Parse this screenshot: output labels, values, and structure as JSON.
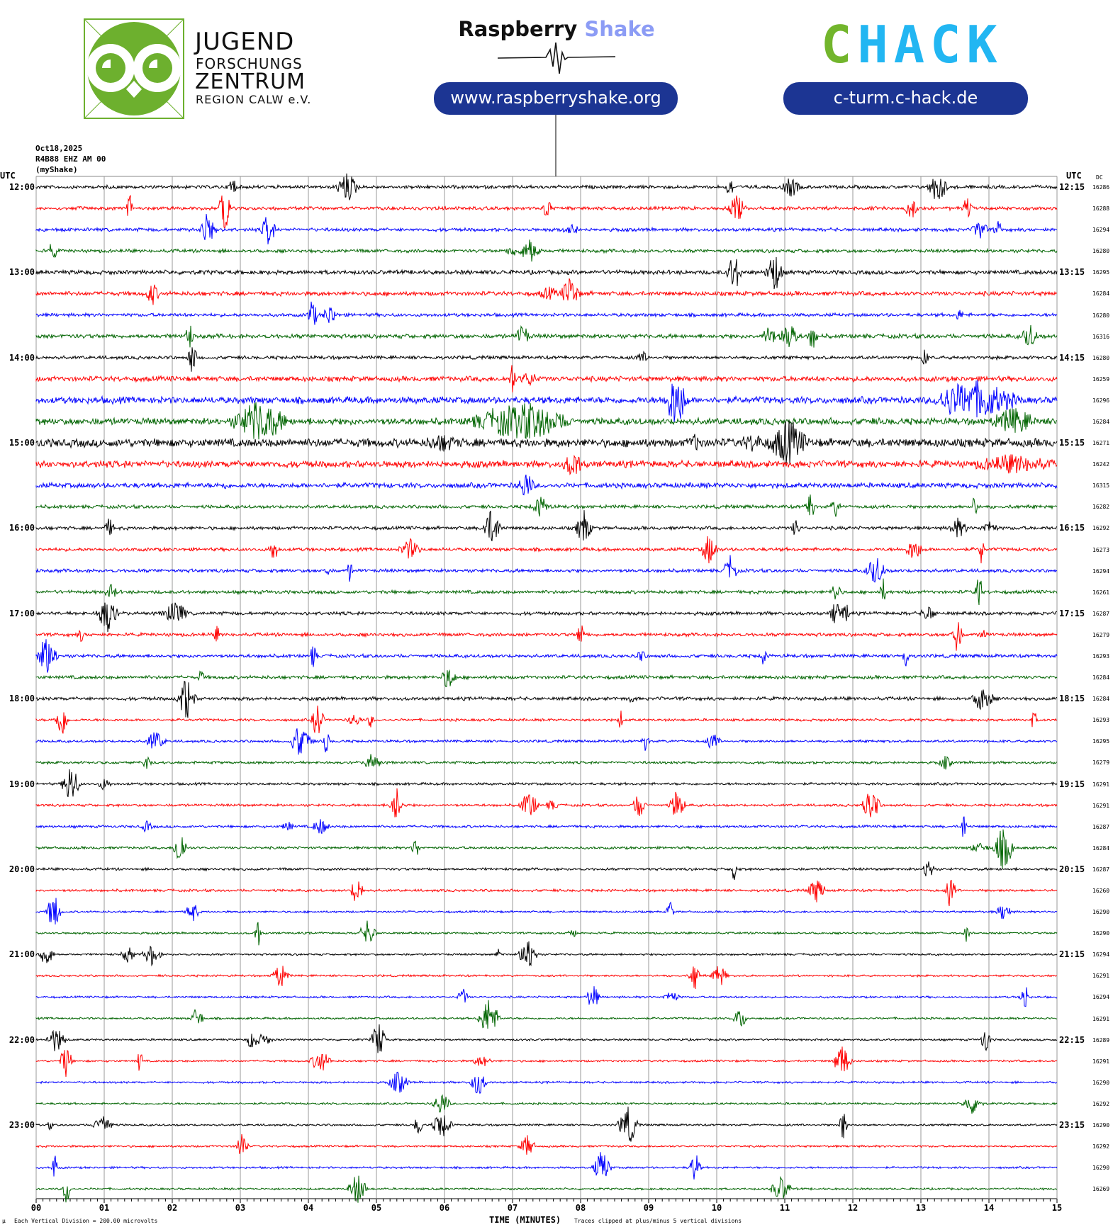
{
  "header": {
    "date": "Oct18,2025",
    "station": "R4B88 EHZ AM 00",
    "network": "(myShake)"
  },
  "logos": {
    "jfz_lines": [
      "JUGEND",
      "FORSCHUNGS",
      "ZENTRUM",
      "REGION CALW e.V."
    ],
    "rs_name_black": "Raspberry",
    "rs_name_blue": "Shake",
    "rs_url": "www.raspberryshake.org",
    "chack_logo": "CHACK",
    "chack_url": "c-turm.c-hack.de",
    "colors": {
      "jfz_green": "#6db02e",
      "rs_blue": "#8c9cf5",
      "pill_blue": "#1c3593",
      "chack_green": "#72b52c",
      "chack_cyan": "#22b6f2"
    }
  },
  "chart_data": {
    "type": "line",
    "title": "",
    "xlabel": "TIME (MINUTES)",
    "xlim": [
      0,
      15
    ],
    "x_ticks": [
      "00",
      "01",
      "02",
      "03",
      "04",
      "05",
      "06",
      "07",
      "08",
      "09",
      "10",
      "11",
      "12",
      "13",
      "14",
      "15"
    ],
    "left_axis_title": "UTC",
    "right_axis_title": "UTC",
    "dc_title": "DC",
    "left_hour_labels": [
      "12:00",
      "13:00",
      "14:00",
      "15:00",
      "16:00",
      "17:00",
      "18:00",
      "19:00",
      "20:00",
      "21:00",
      "22:00",
      "23:00"
    ],
    "right_hour_labels": [
      "12:15",
      "13:15",
      "14:15",
      "15:15",
      "16:15",
      "17:15",
      "18:15",
      "19:15",
      "20:15",
      "21:15",
      "22:15",
      "23:15"
    ],
    "rows_per_hour": 4,
    "row_minutes": 15,
    "trace_colors": [
      "#000000",
      "#ff0000",
      "#0000ff",
      "#006400"
    ],
    "dc_values": [
      16286,
      16288,
      16294,
      16280,
      16295,
      16284,
      16280,
      16316,
      16280,
      16259,
      16296,
      16284,
      16271,
      16242,
      16315,
      16282,
      16292,
      16273,
      16294,
      16261,
      16287,
      16279,
      16293,
      16284,
      16284,
      16293,
      16295,
      16279,
      16291,
      16291,
      16287,
      16284,
      16287,
      16260,
      16290,
      16290,
      16294,
      16291,
      16294,
      16291,
      16289,
      16291,
      16290,
      16292,
      16290,
      16292,
      16290,
      16269
    ],
    "grid": true,
    "scale_note": "Each Vertical Division =  200.00 microvolts",
    "clip_note": "Traces clipped at plus/minus 5 vertical divisions"
  }
}
